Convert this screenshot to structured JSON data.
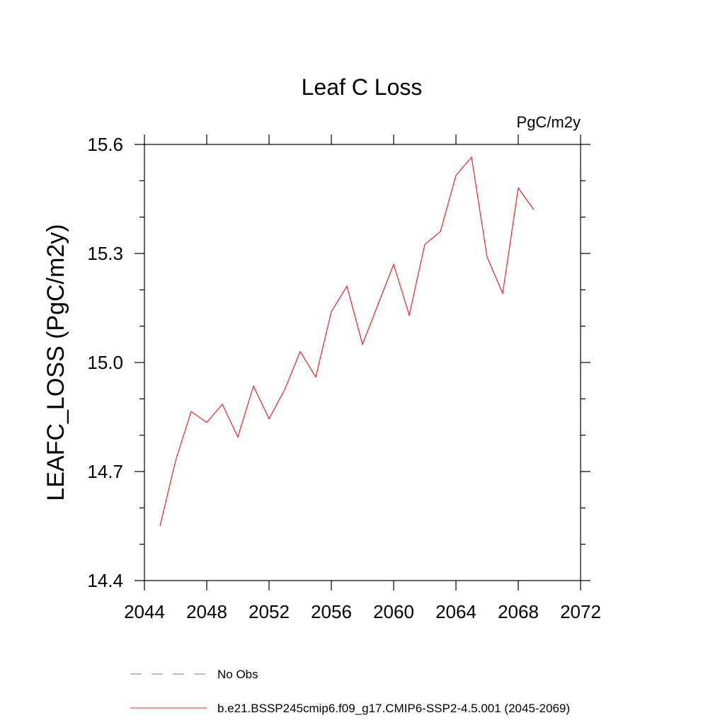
{
  "chart_data": {
    "type": "line",
    "title": "Leaf C Loss",
    "units_label": "PgC/m2y",
    "ylabel": "LEAFC_LOSS  (PgC/m2y)",
    "xlabel": "",
    "xlim": [
      2044,
      2072
    ],
    "ylim": [
      14.4,
      15.6
    ],
    "x_ticks": [
      2044,
      2048,
      2052,
      2056,
      2060,
      2064,
      2068,
      2072
    ],
    "y_ticks": [
      14.4,
      14.7,
      15.0,
      15.3,
      15.6
    ],
    "y_tick_labels": [
      "14.4",
      "14.7",
      "15.0",
      "15.3",
      "15.6"
    ],
    "grid": false,
    "legend_position": "bottom",
    "series": [
      {
        "name": "b.e21.BSSP245cmip6.f09_g17.CMIP6-SSP2-4.5.001 (2045-2069)",
        "color": "#e8232a",
        "style": "solid",
        "x": [
          2045,
          2046,
          2047,
          2048,
          2049,
          2050,
          2051,
          2052,
          2053,
          2054,
          2055,
          2056,
          2057,
          2058,
          2059,
          2060,
          2061,
          2062,
          2063,
          2064,
          2065,
          2066,
          2067,
          2068,
          2069
        ],
        "values": [
          14.55,
          14.73,
          14.865,
          14.835,
          14.885,
          14.795,
          14.935,
          14.845,
          14.925,
          15.03,
          14.96,
          15.14,
          15.21,
          15.05,
          15.16,
          15.27,
          15.13,
          15.325,
          15.36,
          15.515,
          15.565,
          15.29,
          15.19,
          15.48,
          15.42
        ]
      }
    ],
    "legend": [
      {
        "label": "No Obs",
        "color": "#7f6fb2",
        "style": "dashed"
      },
      {
        "label": "b.e21.BSSP245cmip6.f09_g17.CMIP6-SSP2-4.5.001 (2045-2069)",
        "color": "#e8232a",
        "style": "solid"
      }
    ]
  }
}
